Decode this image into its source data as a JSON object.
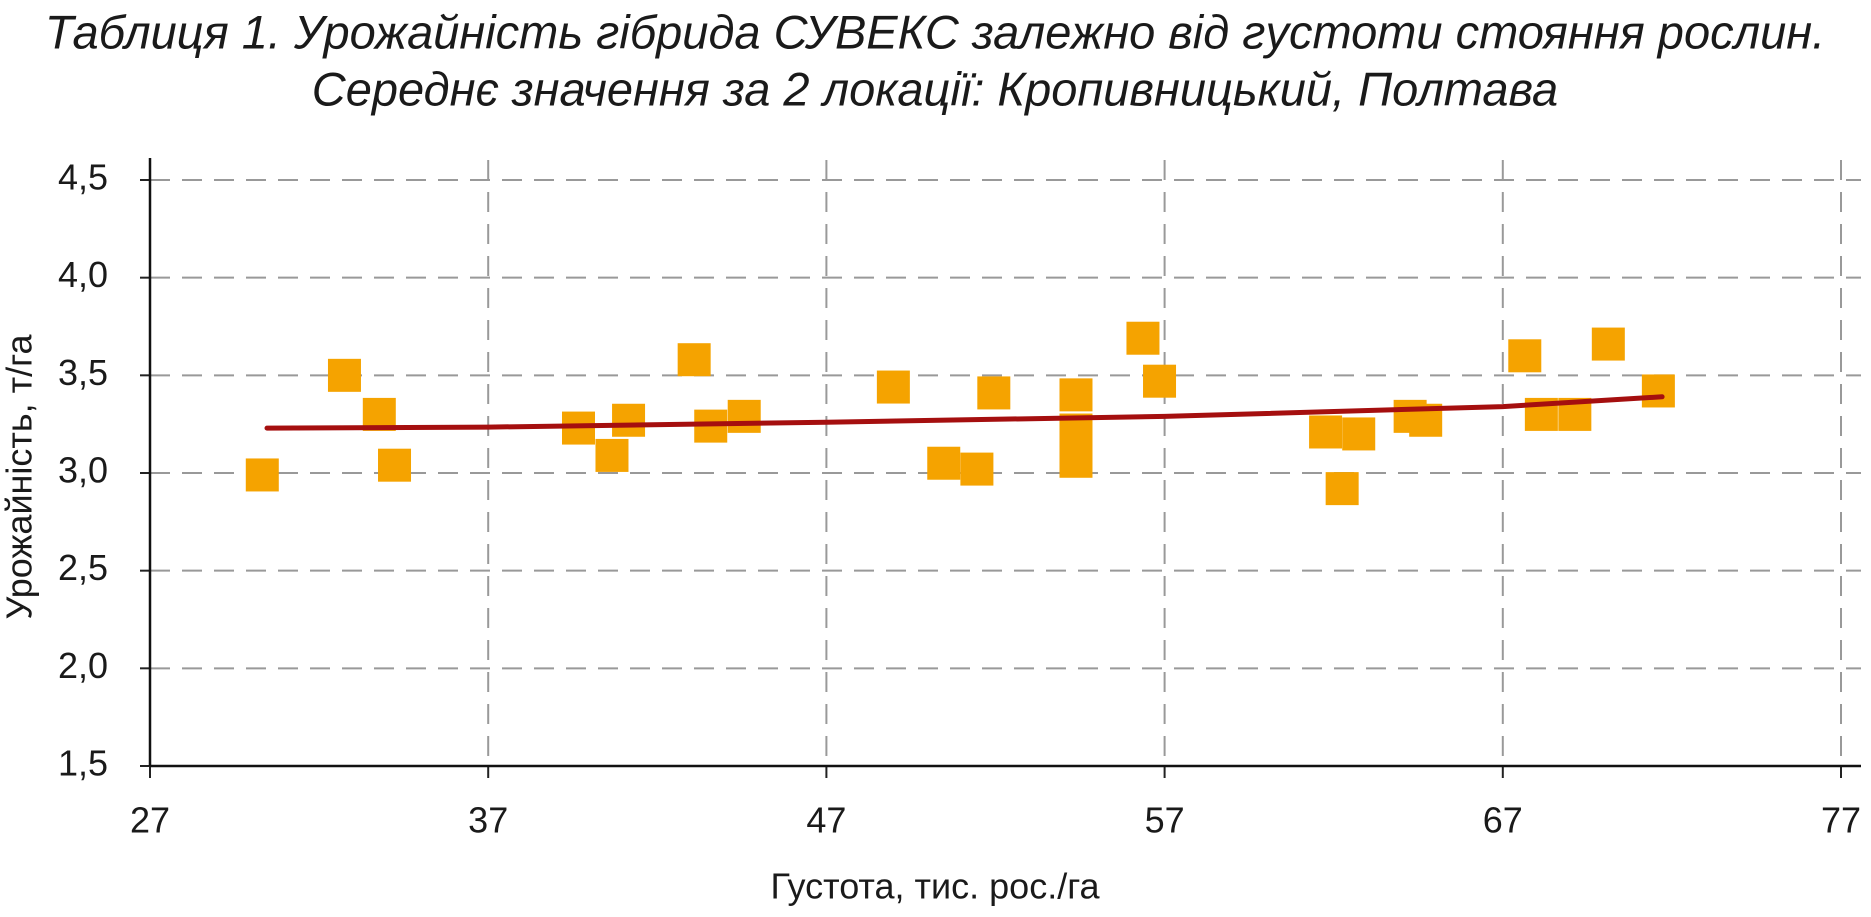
{
  "chart_data": {
    "type": "scatter",
    "title": "Таблиця 1. Урожайність гібрида СУВЕКС залежно від густоти стояння рослин.",
    "subtitle": "Середнє значення за 2 локації: Кропивницький, Полтава",
    "x_label": "Густота, тис. рос./га",
    "y_label": "Урожайність, т/га",
    "xlim": [
      27,
      77
    ],
    "xticks": [
      27,
      37,
      47,
      57,
      67,
      77
    ],
    "ylim": [
      1.5,
      4.5
    ],
    "yticks": [
      {
        "value": 1.5,
        "label": "1,5"
      },
      {
        "value": 2.0,
        "label": "2,0"
      },
      {
        "value": 2.5,
        "label": "2,5"
      },
      {
        "value": 3.0,
        "label": "3,0"
      },
      {
        "value": 3.5,
        "label": "3,5"
      },
      {
        "value": 4.0,
        "label": "4,0"
      },
      {
        "value": 4.5,
        "label": "4,5"
      }
    ],
    "grid": true,
    "color": "#f5a300",
    "x": [
      30.32,
      32.75,
      33.78,
      34.23,
      39.67,
      40.66,
      41.15,
      43.09,
      43.58,
      44.57,
      48.98,
      50.47,
      51.45,
      51.95,
      54.38,
      54.38,
      54.38,
      56.36,
      56.85,
      61.76,
      62.25,
      62.74,
      64.26,
      64.72,
      67.65,
      68.14,
      69.13,
      70.12,
      71.6
    ],
    "values": [
      2.99,
      3.5,
      3.3,
      3.04,
      3.23,
      3.09,
      3.27,
      3.58,
      3.24,
      3.29,
      3.44,
      3.05,
      3.02,
      3.41,
      3.4,
      3.22,
      3.06,
      3.69,
      3.47,
      3.21,
      2.92,
      3.2,
      3.29,
      3.27,
      3.6,
      3.3,
      3.3,
      3.66,
      3.42
    ],
    "trend": {
      "color": "#a50f0f",
      "x": [
        30.46,
        37,
        47,
        57,
        67,
        71.71
      ],
      "values": [
        3.23,
        3.235,
        3.26,
        3.29,
        3.34,
        3.39
      ]
    }
  }
}
